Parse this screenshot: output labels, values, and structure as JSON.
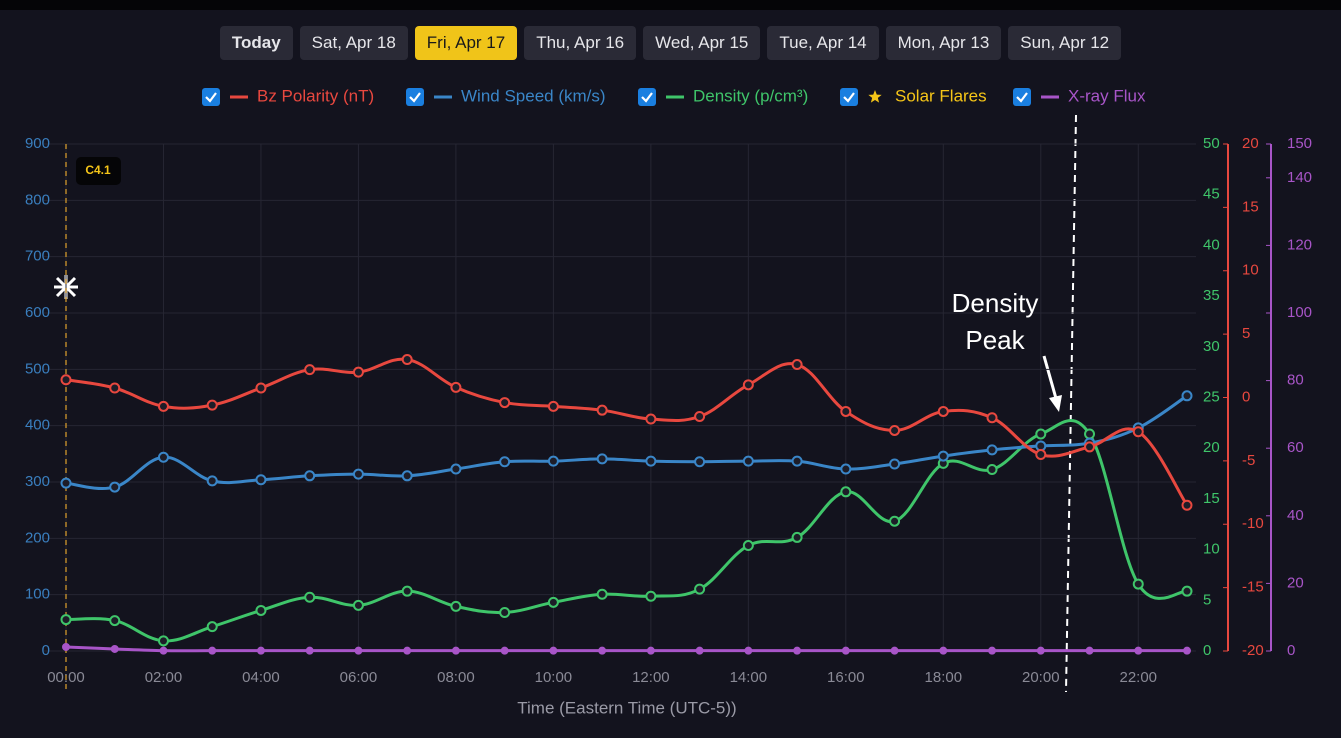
{
  "tabs": [
    "Today",
    "Sat, Apr 18",
    "Fri, Apr 17",
    "Thu, Apr 16",
    "Wed, Apr 15",
    "Tue, Apr 14",
    "Mon, Apr 13",
    "Sun, Apr 12"
  ],
  "active_tab": 2,
  "chart_data": {
    "type": "line",
    "x_label": "Time (Eastern Time (UTC-5))",
    "categories": [
      "00:00",
      null,
      "02:00",
      null,
      "04:00",
      null,
      "06:00",
      null,
      "08:00",
      null,
      "10:00",
      null,
      "12:00",
      null,
      "14:00",
      null,
      "16:00",
      null,
      "18:00",
      null,
      "20:00",
      null,
      "22:00",
      null
    ],
    "grid": true,
    "ylim": [
      0,
      900
    ],
    "yticks": [
      0,
      100,
      200,
      300,
      400,
      500,
      600,
      700,
      800,
      900
    ],
    "ycolor": "#3a7fbf",
    "y2lim": [
      0,
      50
    ],
    "y2ticks": [
      0,
      5,
      10,
      15,
      20,
      25,
      30,
      35,
      40,
      45,
      50
    ],
    "y2color": "#3fc56a",
    "y3lim": [
      -20,
      20
    ],
    "y3ticks": [
      -20,
      -15,
      -10,
      -5,
      0,
      5,
      10,
      15,
      20
    ],
    "y3color": "#e8483f",
    "y4lim": [
      0,
      150
    ],
    "y4ticks": [
      0,
      20,
      40,
      60,
      80,
      100,
      120,
      140,
      150
    ],
    "y4color": "#a855c8",
    "series": [
      {
        "name": "Bz Polarity (nT)",
        "color": "#e8483f",
        "axis": "y3",
        "values": [
          1.4,
          0.75,
          -0.7,
          -0.6,
          0.75,
          2.2,
          2.0,
          3.0,
          0.8,
          -0.4,
          -0.7,
          -1.0,
          -1.7,
          -1.5,
          1.0,
          2.6,
          -1.1,
          -2.6,
          -1.1,
          -1.6,
          -4.5,
          -3.9,
          -2.7,
          -8.5
        ]
      },
      {
        "name": "Wind Speed (km/s)",
        "color": "#3a86c8",
        "axis": "y",
        "values": [
          298,
          291,
          344,
          302,
          304,
          311,
          314,
          311,
          323,
          336,
          337,
          341,
          337,
          336,
          337,
          337,
          323,
          332,
          346,
          357,
          364,
          369,
          396,
          453
        ]
      },
      {
        "name": "Density (p/cm³)",
        "color": "#3fc56a",
        "axis": "y2",
        "values": [
          3.1,
          3.0,
          1.0,
          2.4,
          4.0,
          5.3,
          4.5,
          5.9,
          4.4,
          3.8,
          4.8,
          5.6,
          5.4,
          6.1,
          10.4,
          11.2,
          15.7,
          12.8,
          18.5,
          17.9,
          21.4,
          21.4,
          6.6,
          5.9
        ]
      },
      {
        "name": "X-ray Flux",
        "color": "#a855c8",
        "axis": "y4",
        "values": [
          1.2,
          0.6,
          0.1,
          0.1,
          0.1,
          0.1,
          0.1,
          0.1,
          0.1,
          0.1,
          0.1,
          0.1,
          0.1,
          0.1,
          0.1,
          0.1,
          0.1,
          0.1,
          0.1,
          0.1,
          0.1,
          0.1,
          0.1,
          0.1
        ]
      }
    ],
    "solar_flares": {
      "name": "Solar Flares",
      "color": "#f5c518",
      "events": [
        {
          "x": "00:00",
          "label": "C4.1"
        }
      ]
    },
    "annotation": "Density Peak"
  }
}
